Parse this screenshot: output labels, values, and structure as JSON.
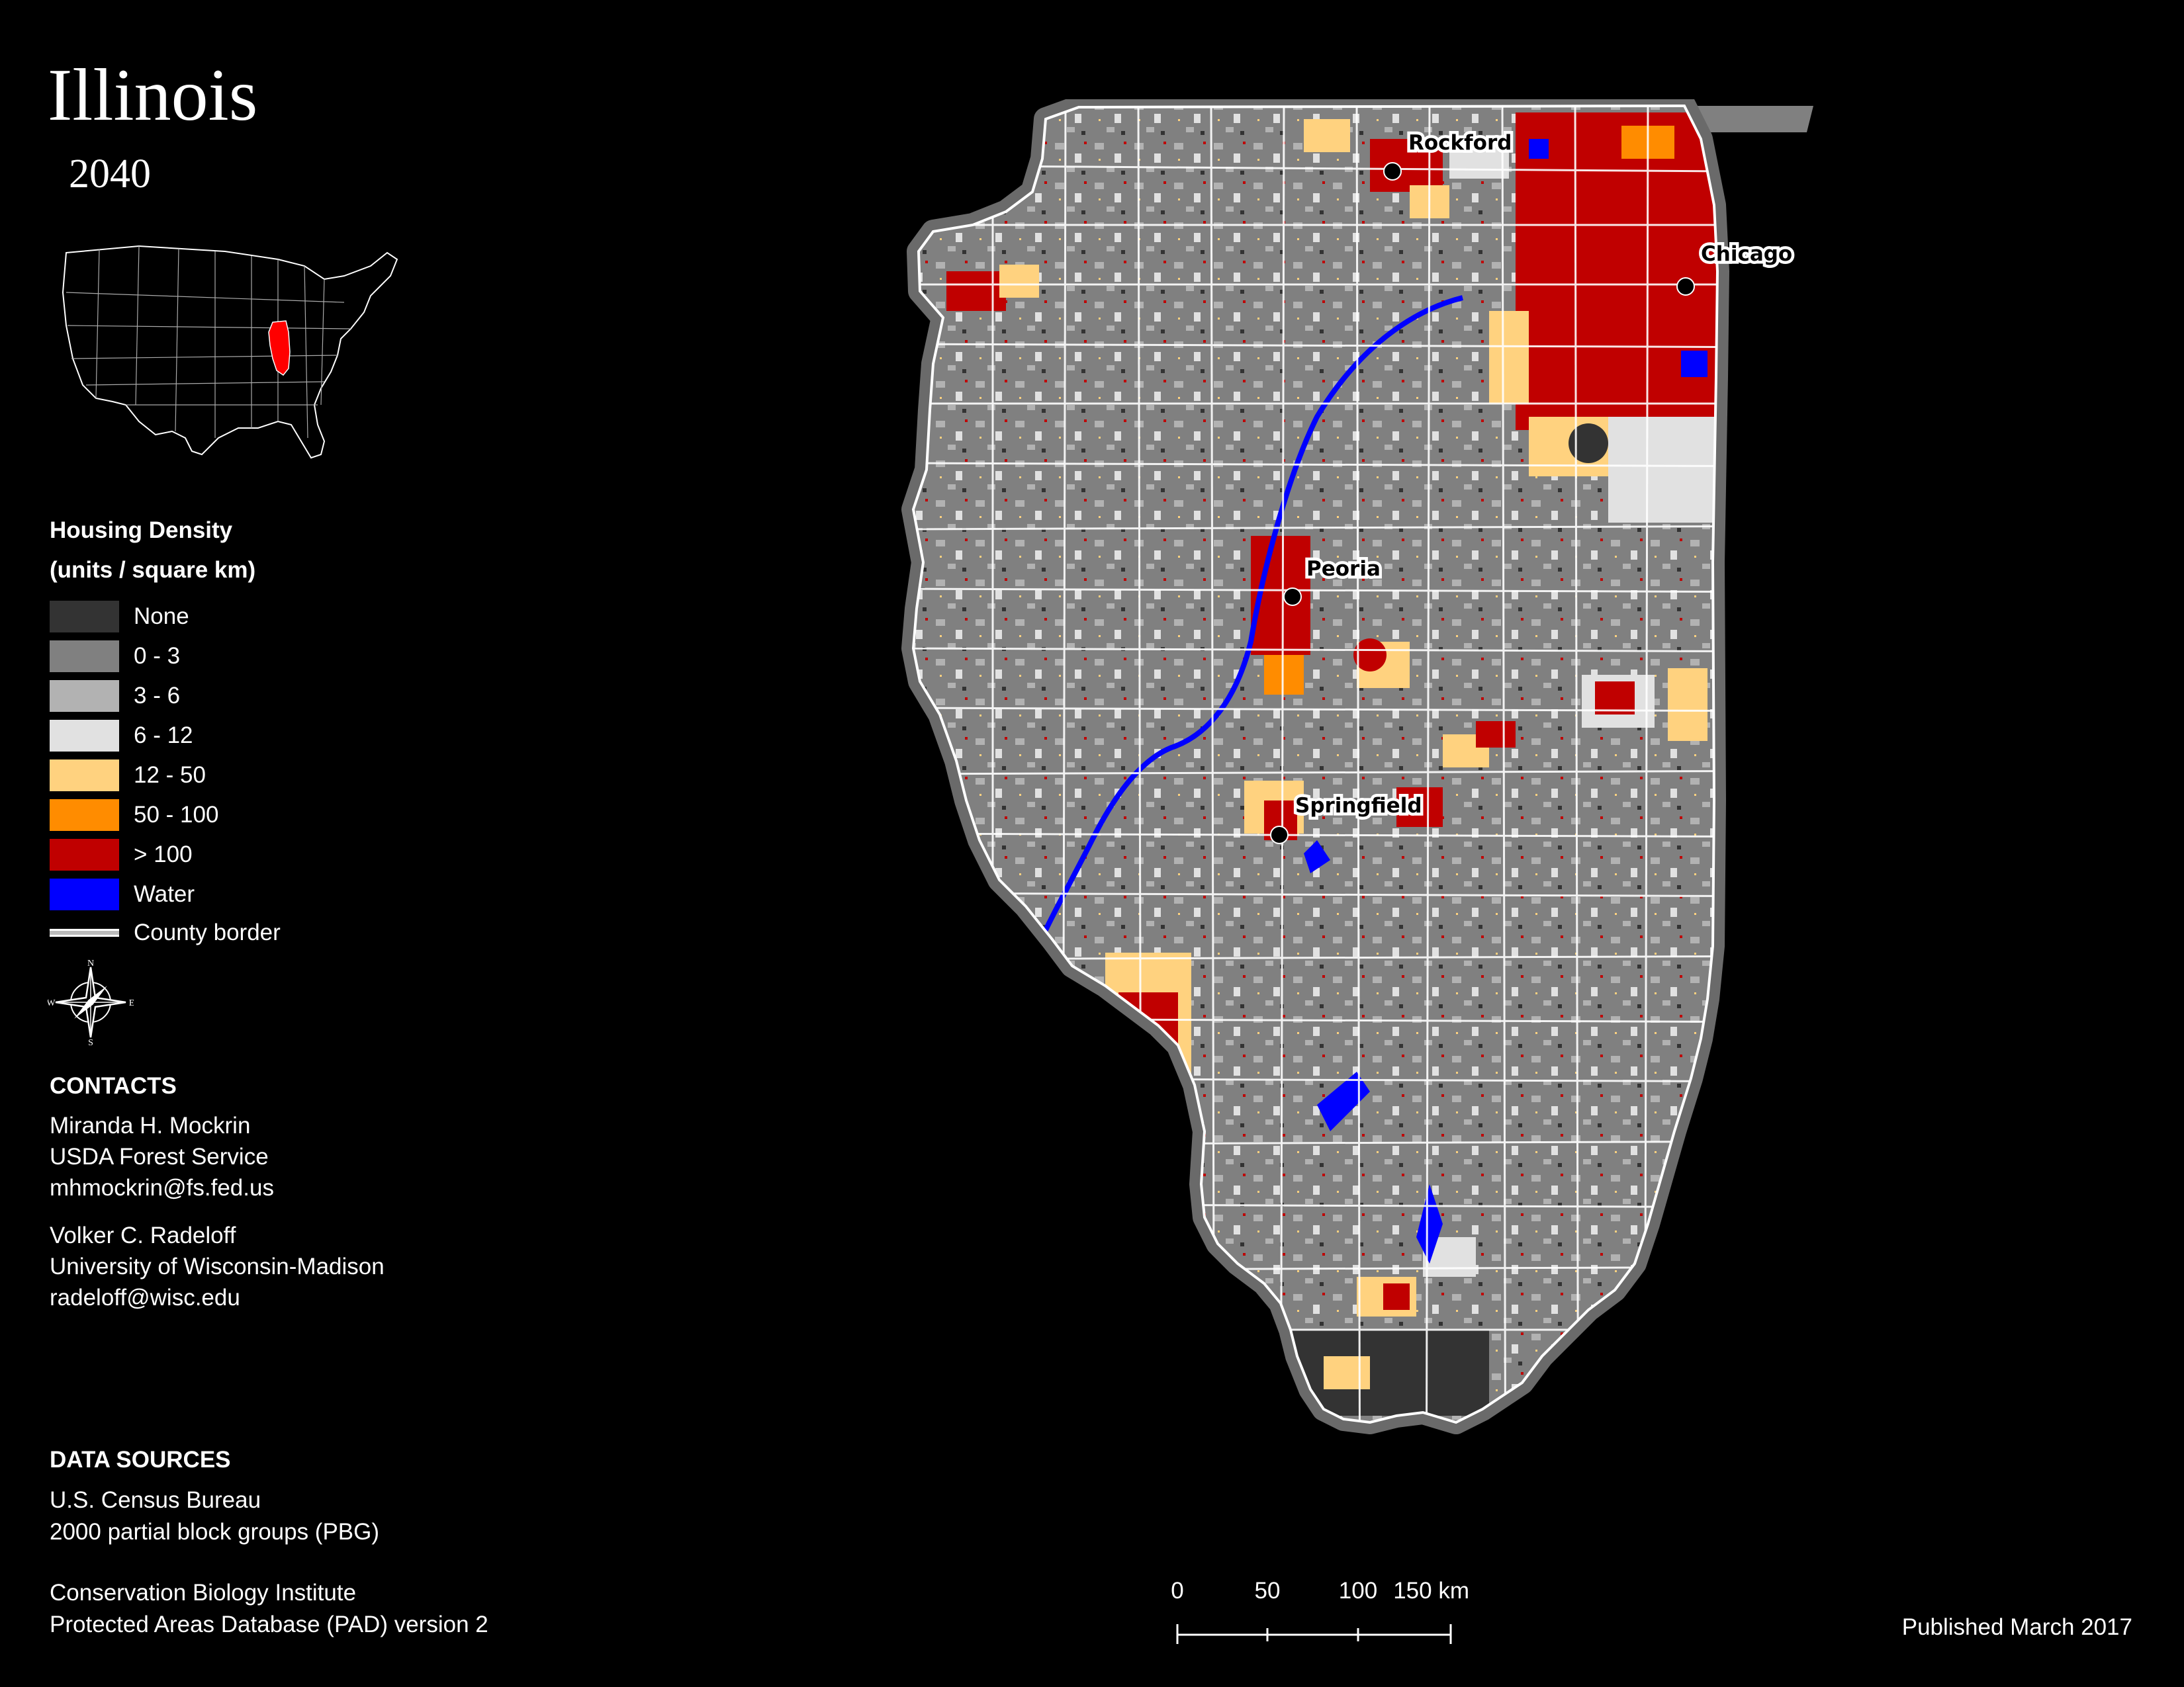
{
  "header": {
    "title": "Illinois",
    "subtitle": "2040"
  },
  "legend": {
    "title_line1": "Housing Density",
    "title_line2": "(units / square km)",
    "items": [
      {
        "label": "None",
        "color": "#333333"
      },
      {
        "label": "0 - 3",
        "color": "#808080"
      },
      {
        "label": "3 - 6",
        "color": "#b2b2b2"
      },
      {
        "label": "6 - 12",
        "color": "#e1e1e1"
      },
      {
        "label": "12 - 50",
        "color": "#ffd27f"
      },
      {
        "label": "50 - 100",
        "color": "#ff8c00"
      },
      {
        "label": "> 100",
        "color": "#c00000"
      },
      {
        "label": "Water",
        "color": "#0000ff"
      }
    ],
    "border_label": "County border"
  },
  "compass": {
    "n": "N",
    "s": "S",
    "e": "E",
    "w": "W"
  },
  "contacts": {
    "title": "CONTACTS",
    "people": [
      {
        "name": "Miranda H. Mockrin",
        "org": "USDA Forest Service",
        "email": "mhmockrin@fs.fed.us"
      },
      {
        "name": "Volker C. Radeloff",
        "org": "University of Wisconsin-Madison",
        "email": "radeloff@wisc.edu"
      }
    ]
  },
  "data_sources": {
    "title": "DATA SOURCES",
    "lines": [
      "U.S. Census Bureau",
      "2000 partial block groups (PBG)",
      "Conservation Biology Institute",
      "Protected Areas Database (PAD) version 2"
    ]
  },
  "cities": [
    {
      "name": "Rockford"
    },
    {
      "name": "Chicago"
    },
    {
      "name": "Peoria"
    },
    {
      "name": "Springfield"
    }
  ],
  "scale_bar": {
    "ticks": [
      "0",
      "50",
      "100",
      "150 km"
    ]
  },
  "published": "Published March 2017",
  "highlight_state_color": "#ff0000"
}
